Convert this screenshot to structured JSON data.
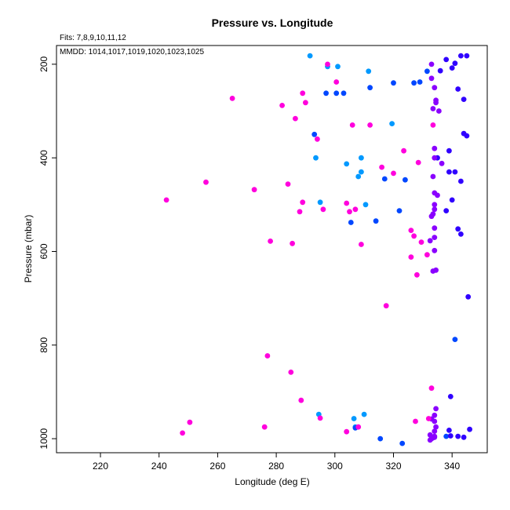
{
  "chart_data": {
    "type": "scatter",
    "title": "Pressure vs. Longitude",
    "annotations": [
      "Fits: 7,8,9,10,11,12",
      "MMDD: 1014,1017,1019,1020,1023,1025"
    ],
    "xlabel": "Longitude (deg E)",
    "ylabel": "Pressure (mbar)",
    "xlim": [
      205,
      352
    ],
    "ylim": [
      1030,
      160
    ],
    "y_axis_inverted": true,
    "xticks": [
      220,
      240,
      260,
      280,
      300,
      320,
      340
    ],
    "yticks": [
      200,
      400,
      600,
      800,
      1000
    ],
    "grid": false,
    "colors": {
      "blue": "#0047ff",
      "sky": "#0099ff",
      "violet": "#8a00ff",
      "magenta": "#ff00dd",
      "purple": "#c800ff",
      "indigo": "#3000ff"
    },
    "series": [
      {
        "color": "#0099ff",
        "points": [
          [
            291.5,
            182
          ],
          [
            297.5,
            205
          ],
          [
            301,
            205
          ],
          [
            311.5,
            215
          ],
          [
            293.5,
            400
          ],
          [
            304,
            413
          ],
          [
            309,
            400
          ],
          [
            319.5,
            327
          ],
          [
            308,
            440
          ],
          [
            309,
            430
          ],
          [
            295,
            495
          ],
          [
            310.5,
            500
          ],
          [
            294.5,
            948
          ],
          [
            306.5,
            957
          ],
          [
            310,
            948
          ],
          [
            307,
            975
          ]
        ]
      },
      {
        "color": "#0047ff",
        "points": [
          [
            297,
            262
          ],
          [
            300.5,
            262
          ],
          [
            303,
            262
          ],
          [
            312,
            250
          ],
          [
            320,
            240
          ],
          [
            327,
            240
          ],
          [
            329,
            238
          ],
          [
            331.5,
            215
          ],
          [
            293,
            350
          ],
          [
            305.5,
            538
          ],
          [
            314,
            535
          ],
          [
            317,
            445
          ],
          [
            322,
            513
          ],
          [
            324,
            447
          ],
          [
            315.5,
            1000
          ],
          [
            323,
            1010
          ],
          [
            307,
            977
          ],
          [
            333,
            1000
          ],
          [
            341,
            788
          ],
          [
            338,
            995
          ]
        ]
      },
      {
        "color": "#3000ff",
        "points": [
          [
            336,
            214
          ],
          [
            338,
            190
          ],
          [
            340,
            208
          ],
          [
            341,
            198
          ],
          [
            343,
            182
          ],
          [
            345,
            182
          ],
          [
            342,
            253
          ],
          [
            344,
            275
          ],
          [
            344,
            348
          ],
          [
            345,
            353
          ],
          [
            335,
            400
          ],
          [
            339,
            385
          ],
          [
            339,
            430
          ],
          [
            341,
            430
          ],
          [
            343,
            450
          ],
          [
            340,
            490
          ],
          [
            338,
            513
          ],
          [
            345.5,
            697
          ],
          [
            342,
            552
          ],
          [
            343,
            563
          ],
          [
            339.5,
            910
          ],
          [
            339,
            982
          ],
          [
            339.5,
            994
          ],
          [
            342,
            995
          ],
          [
            344,
            997
          ],
          [
            346,
            980
          ]
        ]
      },
      {
        "color": "#8a00ff",
        "points": [
          [
            333,
            200
          ],
          [
            333,
            230
          ],
          [
            334,
            250
          ],
          [
            334.5,
            277
          ],
          [
            334.5,
            282
          ],
          [
            333.5,
            295
          ],
          [
            335.5,
            300
          ],
          [
            334,
            380
          ],
          [
            334,
            400
          ],
          [
            336.5,
            412
          ],
          [
            333.5,
            440
          ],
          [
            334,
            475
          ],
          [
            335,
            480
          ],
          [
            334,
            500
          ],
          [
            334,
            510
          ],
          [
            333.5,
            520
          ],
          [
            333,
            525
          ],
          [
            334,
            550
          ],
          [
            334,
            570
          ],
          [
            332.5,
            577
          ],
          [
            334,
            598
          ],
          [
            334.5,
            640
          ],
          [
            333.5,
            642
          ],
          [
            334.5,
            936
          ],
          [
            334,
            950
          ],
          [
            333,
            958
          ],
          [
            334,
            963
          ],
          [
            334.5,
            975
          ],
          [
            334,
            984
          ],
          [
            332.5,
            992
          ],
          [
            334,
            997
          ],
          [
            333,
            1000
          ],
          [
            332.5,
            1003
          ],
          [
            333.5,
            998
          ],
          [
            334,
            995
          ]
        ]
      },
      {
        "color": "#ff00dd",
        "points": [
          [
            297.5,
            200
          ],
          [
            300.5,
            238
          ],
          [
            289,
            262
          ],
          [
            290,
            282
          ],
          [
            282,
            288
          ],
          [
            265,
            273
          ],
          [
            286.5,
            316
          ],
          [
            306,
            330
          ],
          [
            312,
            330
          ],
          [
            333.5,
            330
          ],
          [
            294,
            360
          ],
          [
            323.5,
            385
          ],
          [
            320,
            433
          ],
          [
            316,
            420
          ],
          [
            328.5,
            410
          ],
          [
            284,
            456
          ],
          [
            256,
            452
          ],
          [
            272.5,
            468
          ],
          [
            242.5,
            490
          ],
          [
            289,
            495
          ],
          [
            288,
            515
          ],
          [
            296,
            510
          ],
          [
            304,
            497
          ],
          [
            305,
            515
          ],
          [
            307,
            510
          ],
          [
            326,
            555
          ],
          [
            327,
            567
          ],
          [
            329.5,
            580
          ],
          [
            278,
            578
          ],
          [
            285.5,
            583
          ],
          [
            309,
            585
          ],
          [
            326,
            612
          ],
          [
            331.5,
            607
          ],
          [
            328,
            650
          ],
          [
            317.5,
            716
          ],
          [
            277,
            823
          ],
          [
            285,
            858
          ],
          [
            288.5,
            918
          ],
          [
            295,
            956
          ],
          [
            327.5,
            963
          ],
          [
            332,
            957
          ],
          [
            308,
            975
          ],
          [
            304,
            985
          ],
          [
            276,
            975
          ],
          [
            250.5,
            965
          ],
          [
            248,
            988
          ],
          [
            333,
            892
          ]
        ]
      }
    ]
  }
}
